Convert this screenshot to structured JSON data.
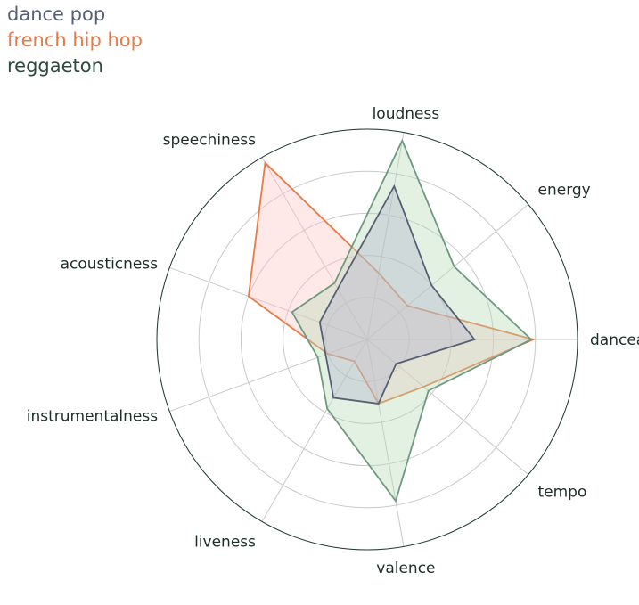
{
  "chart_data": {
    "type": "radar",
    "axes": [
      "danceability",
      "energy",
      "loudness",
      "speechiness",
      "acousticness",
      "instrumentalness",
      "liveness",
      "valence",
      "tempo"
    ],
    "rlim": [
      0,
      1
    ],
    "grid": true,
    "legend_position": "top-left",
    "series": [
      {
        "name": "dance pop",
        "color": "#555f73",
        "fill": "#b3b3cc",
        "values": [
          0.51,
          0.4,
          0.74,
          0.28,
          0.24,
          0.21,
          0.32,
          0.31,
          0.18
        ]
      },
      {
        "name": "french hip hop",
        "color": "#e87a45",
        "fill": "#ffc2c2",
        "values": [
          0.79,
          0.25,
          0.32,
          0.97,
          0.6,
          0.2,
          0.12,
          0.31,
          0.35
        ]
      },
      {
        "name": "reggaeton",
        "color": "#2e4a3e",
        "fill": "#b5dbb5",
        "line": "#6f9980",
        "values": [
          0.78,
          0.54,
          0.96,
          0.31,
          0.38,
          0.25,
          0.38,
          0.78,
          0.38
        ]
      }
    ]
  }
}
